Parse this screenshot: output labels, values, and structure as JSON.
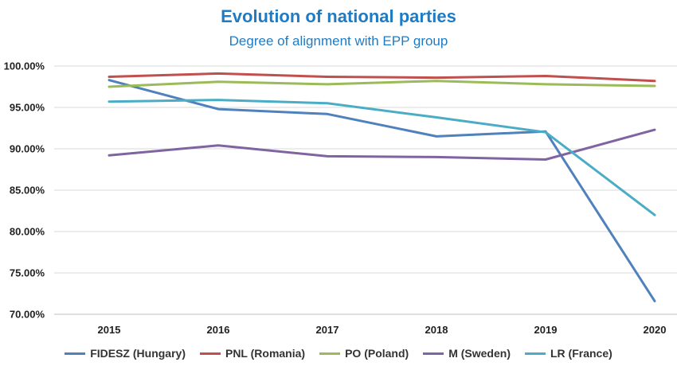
{
  "chart_data": {
    "type": "line",
    "title": "Evolution of national parties",
    "subtitle": "Degree of alignment with EPP group",
    "categories": [
      "2015",
      "2016",
      "2017",
      "2018",
      "2019",
      "2020"
    ],
    "yticks": [
      "70.00%",
      "75.00%",
      "80.00%",
      "85.00%",
      "90.00%",
      "95.00%",
      "100.00%"
    ],
    "ylim": [
      70,
      100
    ],
    "grid": true,
    "legend_position": "bottom",
    "series": [
      {
        "name": "FIDESZ (Hungary)",
        "color": "#4f81bd",
        "values": [
          98.3,
          94.8,
          94.2,
          91.5,
          92.1,
          71.6
        ]
      },
      {
        "name": "PNL (Romania)",
        "color": "#c0504d",
        "values": [
          98.7,
          99.1,
          98.7,
          98.6,
          98.8,
          98.2
        ]
      },
      {
        "name": "PO (Poland)",
        "color": "#9bbb59",
        "values": [
          97.5,
          98.1,
          97.8,
          98.2,
          97.8,
          97.6
        ]
      },
      {
        "name": "M (Sweden)",
        "color": "#8064a2",
        "values": [
          89.2,
          90.4,
          89.1,
          89.0,
          88.7,
          92.3
        ]
      },
      {
        "name": "LR (France)",
        "color": "#4bacc6",
        "values": [
          95.7,
          95.9,
          95.5,
          93.8,
          92.0,
          82.0
        ]
      }
    ]
  }
}
